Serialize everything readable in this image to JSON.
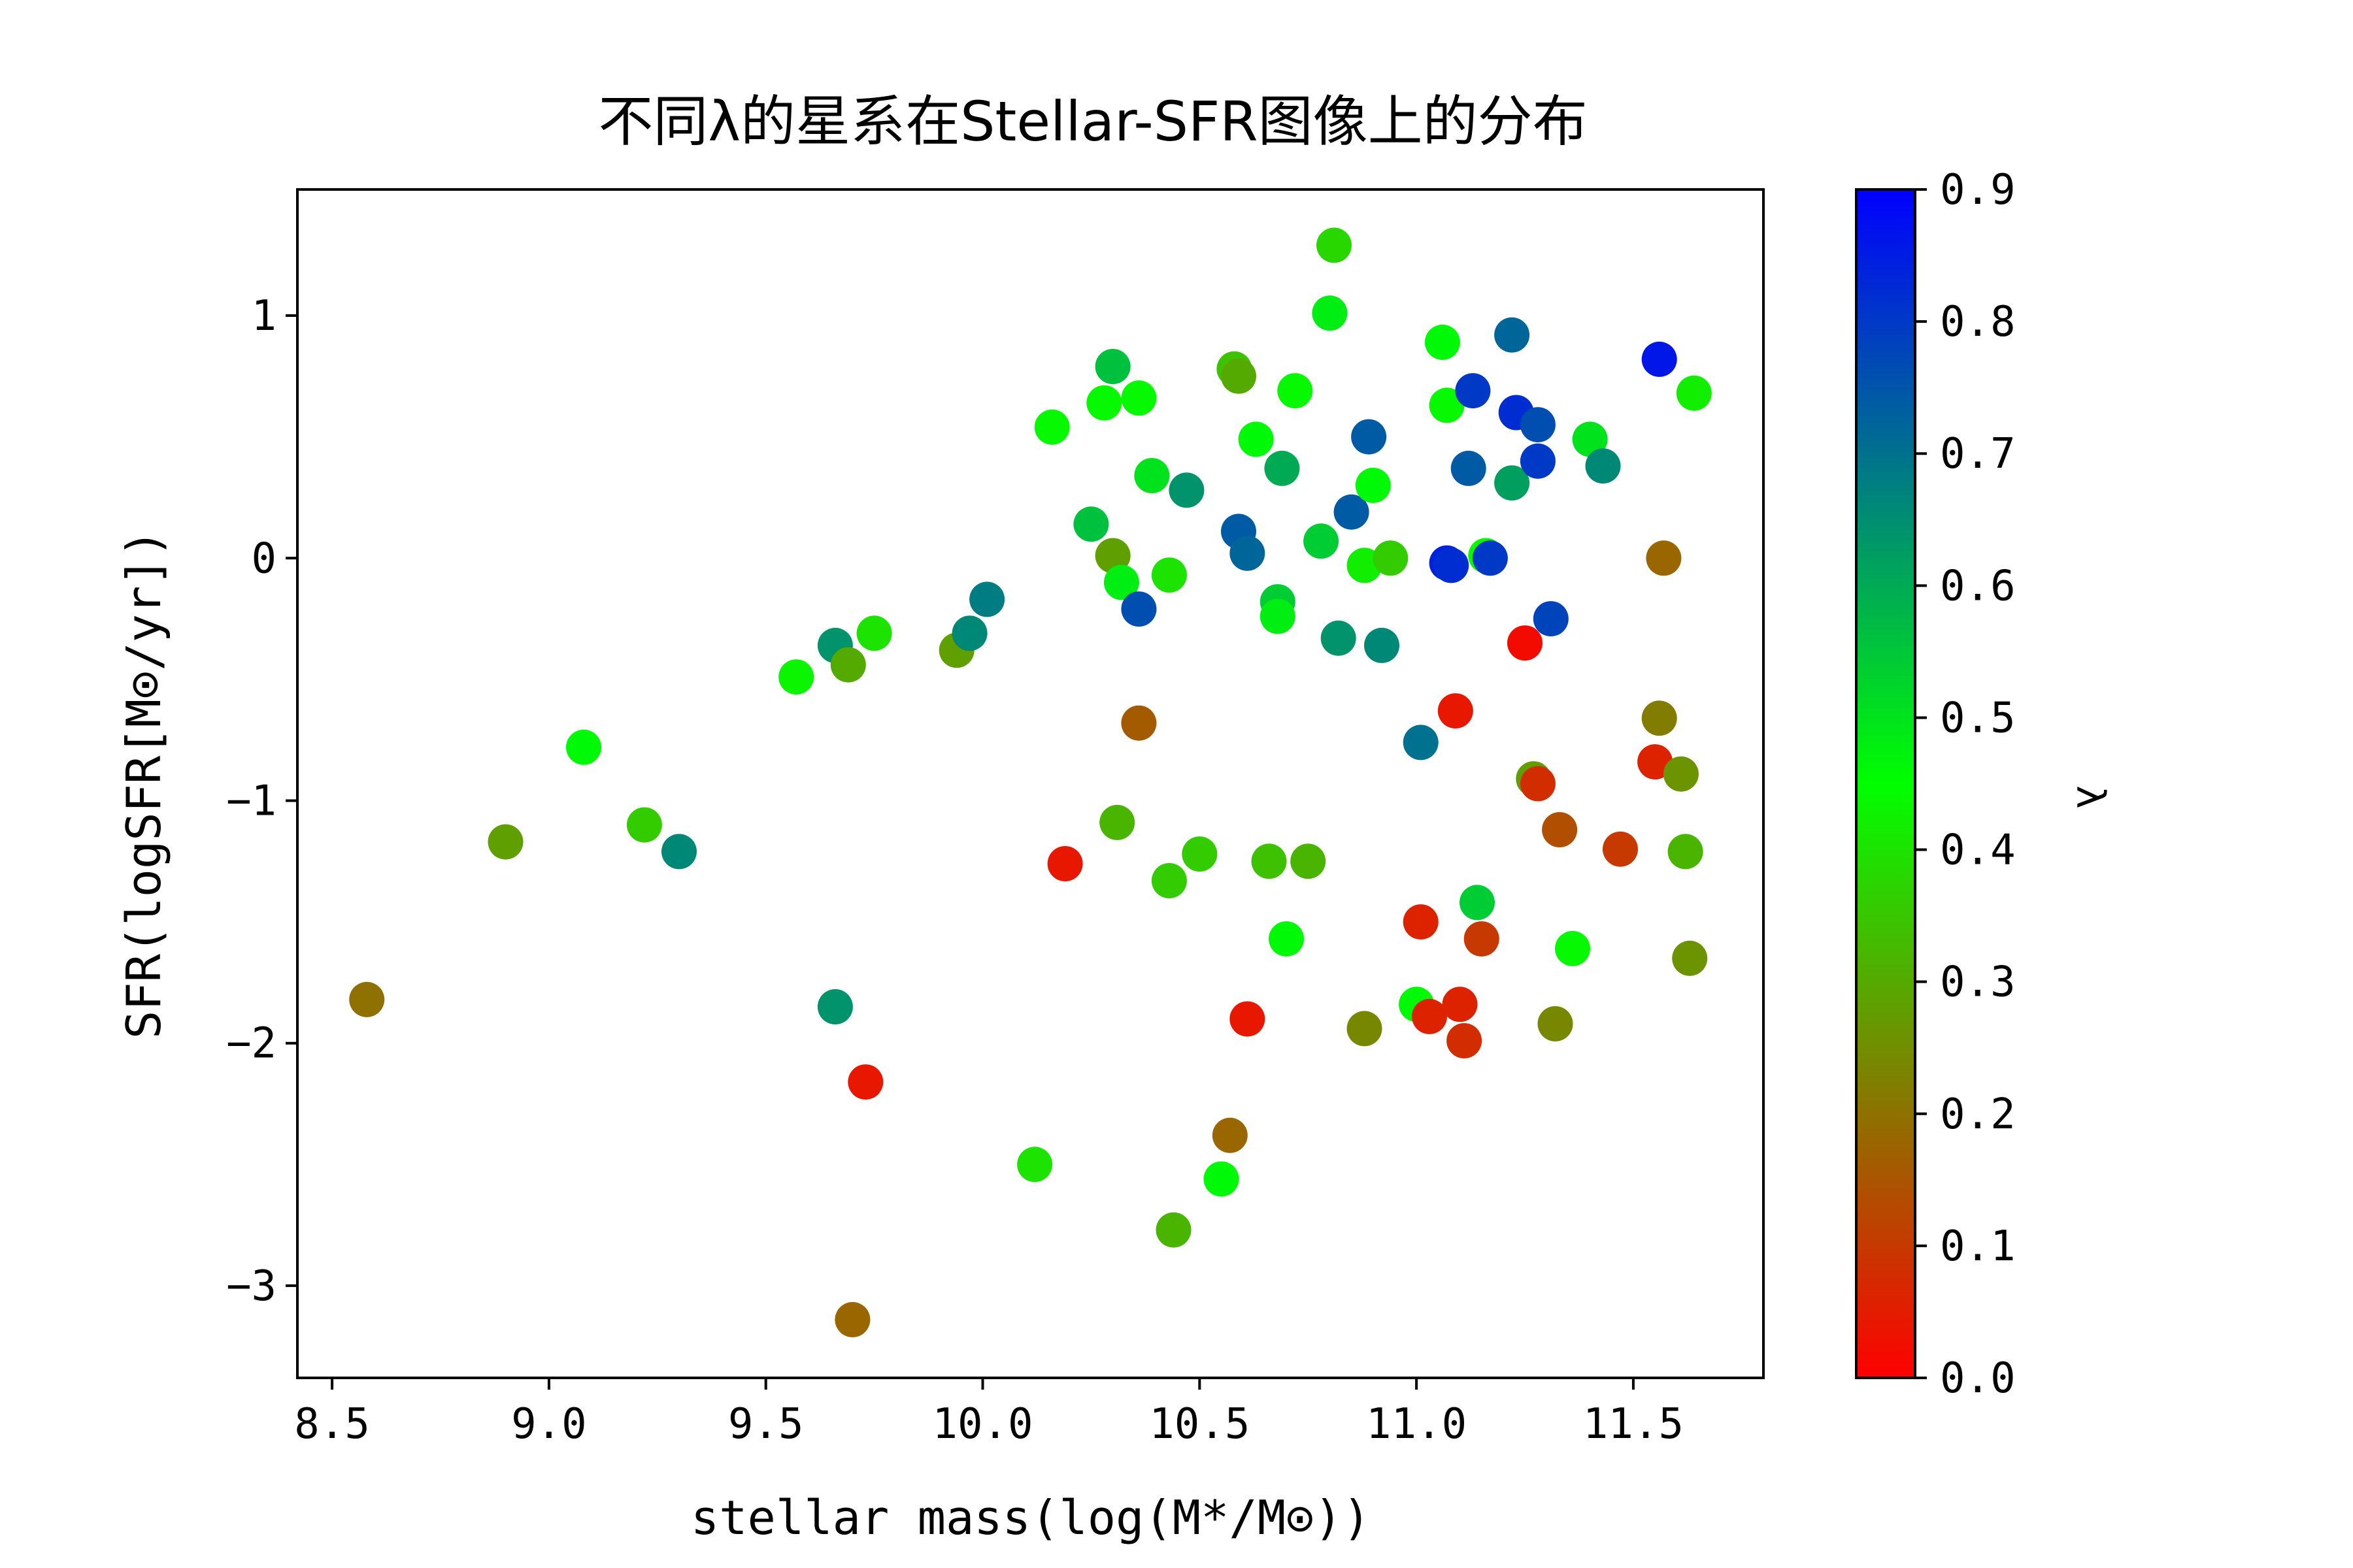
{
  "chart_data": {
    "type": "scatter",
    "title": "不同λ的星系在Stellar-SFR图像上的分布",
    "xlabel": "stellar mass(log(M*/M⊙))",
    "ylabel": "SFR(logSFR[M⊙/yr])",
    "xlim": [
      8.42,
      11.8
    ],
    "ylim": [
      -3.38,
      1.52
    ],
    "xticks": [
      8.5,
      9.0,
      9.5,
      10.0,
      10.5,
      11.0,
      11.5
    ],
    "xtick_labels": [
      "8.5",
      "9.0",
      "9.5",
      "10.0",
      "10.5",
      "11.0",
      "11.5"
    ],
    "yticks": [
      1,
      0,
      -1,
      -2,
      -3
    ],
    "ytick_labels": [
      "1",
      "0",
      "−1",
      "−2",
      "−3"
    ],
    "grid": false,
    "legend": "none",
    "colorbar": {
      "label": "λ",
      "range": [
        0.0,
        0.9
      ],
      "ticks": [
        0.0,
        0.1,
        0.2,
        0.3,
        0.4,
        0.5,
        0.6,
        0.7,
        0.8,
        0.9
      ],
      "tick_labels": [
        "0.0",
        "0.1",
        "0.2",
        "0.3",
        "0.4",
        "0.5",
        "0.6",
        "0.7",
        "0.8",
        "0.9"
      ],
      "colors": [
        "#ff0000",
        "#00ff00",
        "#0000ff"
      ]
    },
    "points": [
      {
        "x": 8.58,
        "y": -1.82,
        "c": 0.2
      },
      {
        "x": 8.9,
        "y": -1.17,
        "c": 0.28
      },
      {
        "x": 9.08,
        "y": -0.78,
        "c": 0.46
      },
      {
        "x": 9.22,
        "y": -1.1,
        "c": 0.36
      },
      {
        "x": 9.3,
        "y": -1.21,
        "c": 0.66
      },
      {
        "x": 9.57,
        "y": -0.49,
        "c": 0.43
      },
      {
        "x": 9.66,
        "y": -0.36,
        "c": 0.64
      },
      {
        "x": 9.69,
        "y": -0.44,
        "c": 0.3
      },
      {
        "x": 9.75,
        "y": -0.31,
        "c": 0.4
      },
      {
        "x": 9.66,
        "y": -1.85,
        "c": 0.64
      },
      {
        "x": 9.73,
        "y": -2.16,
        "c": 0.04
      },
      {
        "x": 9.7,
        "y": -3.14,
        "c": 0.18
      },
      {
        "x": 9.94,
        "y": -0.38,
        "c": 0.28
      },
      {
        "x": 9.97,
        "y": -0.31,
        "c": 0.66
      },
      {
        "x": 10.01,
        "y": -0.17,
        "c": 0.68
      },
      {
        "x": 10.12,
        "y": -2.5,
        "c": 0.4
      },
      {
        "x": 10.16,
        "y": 0.54,
        "c": 0.44
      },
      {
        "x": 10.19,
        "y": -1.26,
        "c": 0.04
      },
      {
        "x": 10.25,
        "y": 0.14,
        "c": 0.56
      },
      {
        "x": 10.28,
        "y": 0.64,
        "c": 0.44
      },
      {
        "x": 10.3,
        "y": 0.79,
        "c": 0.56
      },
      {
        "x": 10.3,
        "y": 0.01,
        "c": 0.28
      },
      {
        "x": 10.32,
        "y": -0.1,
        "c": 0.48
      },
      {
        "x": 10.31,
        "y": -1.09,
        "c": 0.32
      },
      {
        "x": 10.36,
        "y": 0.66,
        "c": 0.44
      },
      {
        "x": 10.36,
        "y": -0.21,
        "c": 0.76
      },
      {
        "x": 10.36,
        "y": -0.68,
        "c": 0.16
      },
      {
        "x": 10.39,
        "y": 0.34,
        "c": 0.5
      },
      {
        "x": 10.43,
        "y": -0.07,
        "c": 0.4
      },
      {
        "x": 10.43,
        "y": -1.33,
        "c": 0.36
      },
      {
        "x": 10.44,
        "y": -2.77,
        "c": 0.32
      },
      {
        "x": 10.47,
        "y": 0.28,
        "c": 0.64
      },
      {
        "x": 10.5,
        "y": -1.22,
        "c": 0.36
      },
      {
        "x": 10.55,
        "y": -2.56,
        "c": 0.46
      },
      {
        "x": 10.57,
        "y": -2.38,
        "c": 0.18
      },
      {
        "x": 10.58,
        "y": 0.78,
        "c": 0.34
      },
      {
        "x": 10.59,
        "y": 0.75,
        "c": 0.3
      },
      {
        "x": 10.59,
        "y": 0.11,
        "c": 0.74
      },
      {
        "x": 10.61,
        "y": 0.02,
        "c": 0.72
      },
      {
        "x": 10.61,
        "y": -1.9,
        "c": 0.04
      },
      {
        "x": 10.63,
        "y": 0.49,
        "c": 0.46
      },
      {
        "x": 10.66,
        "y": -1.25,
        "c": 0.34
      },
      {
        "x": 10.68,
        "y": -0.18,
        "c": 0.54
      },
      {
        "x": 10.68,
        "y": -0.24,
        "c": 0.48
      },
      {
        "x": 10.69,
        "y": 0.37,
        "c": 0.6
      },
      {
        "x": 10.7,
        "y": -1.57,
        "c": 0.46
      },
      {
        "x": 10.72,
        "y": 0.69,
        "c": 0.44
      },
      {
        "x": 10.75,
        "y": -1.25,
        "c": 0.32
      },
      {
        "x": 10.78,
        "y": 0.07,
        "c": 0.54
      },
      {
        "x": 10.8,
        "y": 1.01,
        "c": 0.48
      },
      {
        "x": 10.81,
        "y": 1.29,
        "c": 0.38
      },
      {
        "x": 10.82,
        "y": -0.33,
        "c": 0.64
      },
      {
        "x": 10.85,
        "y": 0.19,
        "c": 0.74
      },
      {
        "x": 10.88,
        "y": -0.03,
        "c": 0.42
      },
      {
        "x": 10.89,
        "y": 0.5,
        "c": 0.74
      },
      {
        "x": 10.88,
        "y": -1.94,
        "c": 0.24
      },
      {
        "x": 10.9,
        "y": 0.3,
        "c": 0.46
      },
      {
        "x": 10.92,
        "y": -0.36,
        "c": 0.66
      },
      {
        "x": 10.94,
        "y": 0.0,
        "c": 0.36
      },
      {
        "x": 11.0,
        "y": -1.84,
        "c": 0.46
      },
      {
        "x": 11.01,
        "y": -0.76,
        "c": 0.7
      },
      {
        "x": 11.01,
        "y": -1.5,
        "c": 0.06
      },
      {
        "x": 11.03,
        "y": -1.89,
        "c": 0.06
      },
      {
        "x": 11.06,
        "y": 0.89,
        "c": 0.46
      },
      {
        "x": 11.07,
        "y": 0.63,
        "c": 0.44
      },
      {
        "x": 11.07,
        "y": -0.02,
        "c": 0.84
      },
      {
        "x": 11.08,
        "y": -0.03,
        "c": 0.82
      },
      {
        "x": 11.09,
        "y": -0.63,
        "c": 0.04
      },
      {
        "x": 11.1,
        "y": -1.84,
        "c": 0.06
      },
      {
        "x": 11.11,
        "y": -1.99,
        "c": 0.08
      },
      {
        "x": 11.12,
        "y": 0.37,
        "c": 0.74
      },
      {
        "x": 11.13,
        "y": 0.69,
        "c": 0.8
      },
      {
        "x": 11.14,
        "y": -1.42,
        "c": 0.54
      },
      {
        "x": 11.15,
        "y": -1.57,
        "c": 0.1
      },
      {
        "x": 11.16,
        "y": 0.01,
        "c": 0.44
      },
      {
        "x": 11.17,
        "y": 0.0,
        "c": 0.8
      },
      {
        "x": 11.22,
        "y": 0.92,
        "c": 0.72
      },
      {
        "x": 11.23,
        "y": 0.6,
        "c": 0.82
      },
      {
        "x": 11.22,
        "y": 0.31,
        "c": 0.62
      },
      {
        "x": 11.25,
        "y": -0.35,
        "c": 0.02
      },
      {
        "x": 11.27,
        "y": -0.91,
        "c": 0.28
      },
      {
        "x": 11.28,
        "y": -0.93,
        "c": 0.08
      },
      {
        "x": 11.28,
        "y": 0.4,
        "c": 0.8
      },
      {
        "x": 11.28,
        "y": 0.55,
        "c": 0.76
      },
      {
        "x": 11.31,
        "y": -0.25,
        "c": 0.78
      },
      {
        "x": 11.32,
        "y": -1.92,
        "c": 0.24
      },
      {
        "x": 11.33,
        "y": -1.12,
        "c": 0.14
      },
      {
        "x": 11.36,
        "y": -1.61,
        "c": 0.44
      },
      {
        "x": 11.4,
        "y": 0.49,
        "c": 0.5
      },
      {
        "x": 11.43,
        "y": 0.38,
        "c": 0.66
      },
      {
        "x": 11.47,
        "y": -1.2,
        "c": 0.1
      },
      {
        "x": 11.55,
        "y": -0.84,
        "c": 0.06
      },
      {
        "x": 11.56,
        "y": -0.66,
        "c": 0.22
      },
      {
        "x": 11.56,
        "y": 0.82,
        "c": 0.86
      },
      {
        "x": 11.57,
        "y": 0.0,
        "c": 0.18
      },
      {
        "x": 11.61,
        "y": -0.89,
        "c": 0.26
      },
      {
        "x": 11.62,
        "y": -1.21,
        "c": 0.32
      },
      {
        "x": 11.63,
        "y": -1.65,
        "c": 0.26
      },
      {
        "x": 11.64,
        "y": 0.68,
        "c": 0.42
      }
    ]
  }
}
